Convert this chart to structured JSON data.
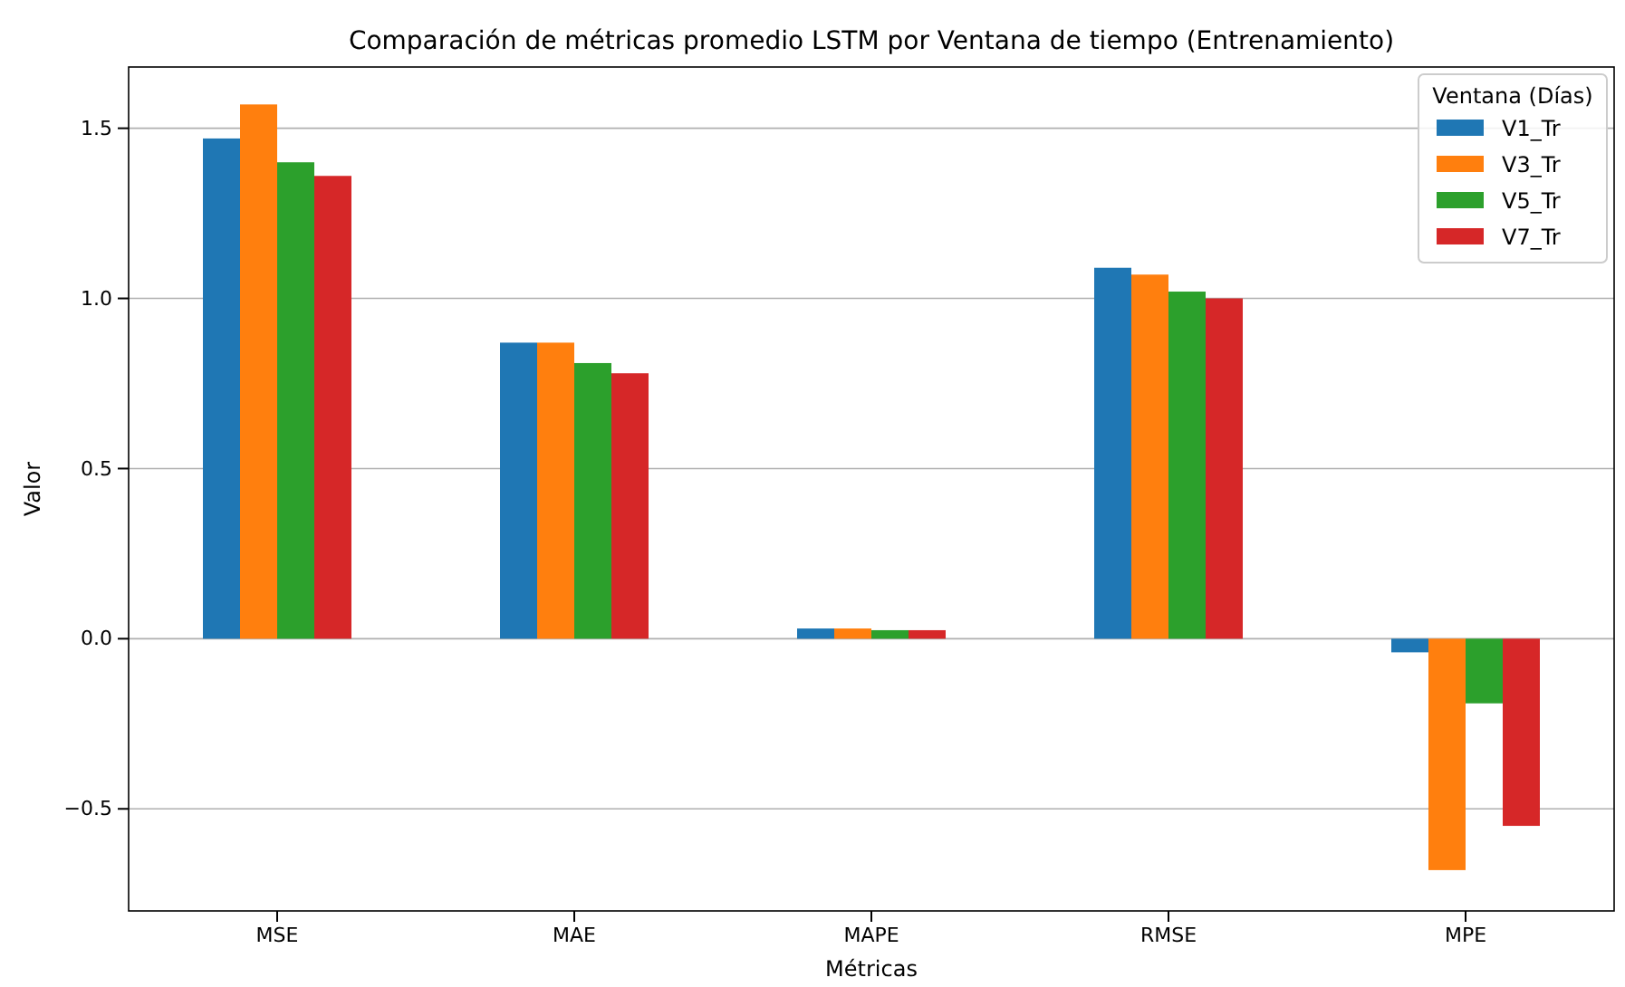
{
  "chart_data": {
    "type": "bar",
    "title": "Comparación de métricas promedio LSTM por Ventana de tiempo (Entrenamiento)",
    "xlabel": "Métricas",
    "ylabel": "Valor",
    "legend_title": "Ventana (Días)",
    "categories": [
      "MSE",
      "MAE",
      "MAPE",
      "RMSE",
      "MPE"
    ],
    "series": [
      {
        "name": "V1_Tr",
        "color": "#1f77b4",
        "values": [
          1.47,
          0.87,
          0.03,
          1.09,
          -0.04
        ]
      },
      {
        "name": "V3_Tr",
        "color": "#ff7f0e",
        "values": [
          1.57,
          0.87,
          0.03,
          1.07,
          -0.68
        ]
      },
      {
        "name": "V5_Tr",
        "color": "#2ca02c",
        "values": [
          1.4,
          0.81,
          0.025,
          1.02,
          -0.19
        ]
      },
      {
        "name": "V7_Tr",
        "color": "#d62728",
        "values": [
          1.36,
          0.78,
          0.025,
          1.0,
          -0.55
        ]
      }
    ],
    "ylim": [
      -0.8,
      1.68
    ],
    "yticks": [
      {
        "value": -0.5,
        "label": "−0.5"
      },
      {
        "value": 0,
        "label": "0.0"
      },
      {
        "value": 0.5,
        "label": "0.5"
      },
      {
        "value": 1,
        "label": "1.0"
      },
      {
        "value": 1.5,
        "label": "1.5"
      }
    ],
    "grid": "y",
    "legend": "top right"
  }
}
